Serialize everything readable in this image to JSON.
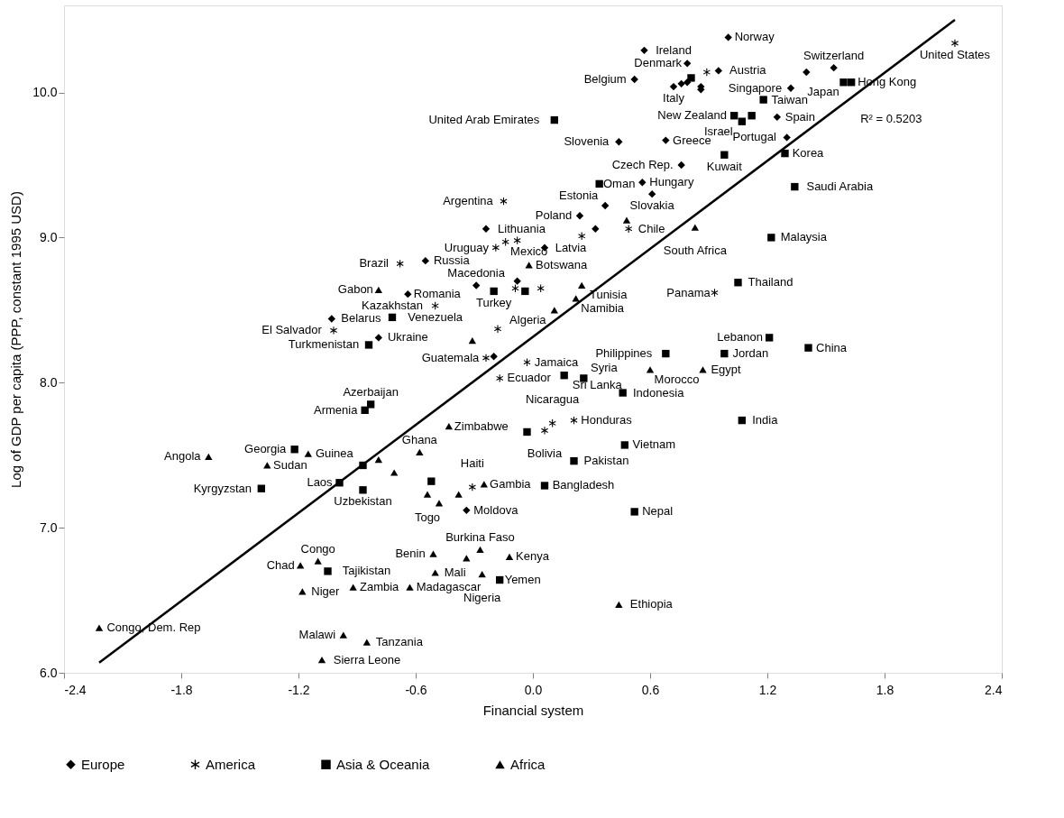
{
  "chart_data": {
    "type": "scatter",
    "xlabel": "Financial system",
    "ylabel": "Log of GDP per capita (PPP, constant 1995 USD)",
    "xlim": [
      -2.4,
      2.4
    ],
    "ylim": [
      6,
      10.6
    ],
    "xticks": [
      -2.4,
      -1.8,
      -1.2,
      -0.6,
      {
        "value": 0,
        "label": "0.0"
      },
      0.6,
      1.2,
      1.8,
      2.4
    ],
    "yticks": [
      {
        "value": 6,
        "label": "6.0"
      },
      {
        "value": 7,
        "label": "7.0"
      },
      {
        "value": 8,
        "label": "8.0"
      },
      {
        "value": 9,
        "label": "9.0"
      },
      {
        "value": 10,
        "label": "10.0"
      }
    ],
    "grid": false,
    "legend": "bottom",
    "series": [
      {
        "name": "Europe",
        "color": "#000000",
        "marker": "diamond",
        "x": [
          0.57,
          1.0,
          0.79,
          0.52,
          0.95,
          0.72,
          0.76,
          0.79,
          0.86,
          0.86,
          1.32,
          1.4,
          1.54,
          1.25,
          1.3,
          0.44,
          0.68,
          0.76,
          0.56,
          0.61,
          0.37,
          0.24,
          0.32,
          0.06,
          -0.08,
          -0.24,
          -0.55,
          -0.29,
          -0.64,
          -1.03,
          -0.79,
          -0.2,
          -0.34
        ],
        "values": [
          10.29,
          10.38,
          10.2,
          10.09,
          10.15,
          10.04,
          10.06,
          10.07,
          10.04,
          10.02,
          10.03,
          10.14,
          10.17,
          9.83,
          9.69,
          9.66,
          9.67,
          9.5,
          9.38,
          9.3,
          9.22,
          9.15,
          9.06,
          8.93,
          8.7,
          9.06,
          8.84,
          8.67,
          8.61,
          8.44,
          8.31,
          8.18,
          7.12
        ]
      },
      {
        "name": "America",
        "color": "#000000",
        "marker": "cross",
        "x": [
          0.89,
          2.16,
          -0.15,
          -0.19,
          -0.14,
          -0.08,
          0.25,
          0.49,
          0.04,
          -0.09,
          -0.18,
          -0.68,
          -0.5,
          -1.02,
          -0.24,
          -0.17,
          -0.03,
          0.1,
          0.06,
          0.21,
          -0.31,
          0.93
        ],
        "values": [
          10.14,
          10.34,
          9.25,
          8.93,
          8.97,
          8.98,
          9.01,
          9.06,
          8.65,
          8.65,
          8.37,
          8.82,
          8.53,
          8.36,
          8.17,
          8.03,
          8.14,
          7.72,
          7.67,
          7.74,
          7.28,
          8.62
        ]
      },
      {
        "name": "Asia & Oceania",
        "color": "#000000",
        "marker": "square",
        "x": [
          0.81,
          1.59,
          1.63,
          1.18,
          1.03,
          1.07,
          1.12,
          0.11,
          0.98,
          1.29,
          0.34,
          1.34,
          1.22,
          1.05,
          -0.04,
          1.21,
          -0.2,
          -0.72,
          -0.84,
          0.68,
          0.98,
          1.41,
          0.16,
          0.26,
          0.46,
          1.07,
          -0.03,
          0.47,
          0.21,
          0.06,
          0.52,
          -0.17,
          -0.83,
          -0.86,
          -1.22,
          -1.39,
          -0.99,
          -0.87,
          -0.87,
          -0.52,
          -1.05
        ],
        "values": [
          10.1,
          10.07,
          10.07,
          9.95,
          9.84,
          9.8,
          9.84,
          9.81,
          9.57,
          9.58,
          9.37,
          9.35,
          9.0,
          8.69,
          8.63,
          8.31,
          8.63,
          8.45,
          8.26,
          8.2,
          8.2,
          8.24,
          8.05,
          8.03,
          7.93,
          7.74,
          7.66,
          7.57,
          7.46,
          7.29,
          7.11,
          6.64,
          7.85,
          7.81,
          7.54,
          7.27,
          7.31,
          7.43,
          7.26,
          7.32,
          6.7
        ]
      },
      {
        "name": "Africa",
        "color": "#000000",
        "marker": "triangle",
        "x": [
          0.48,
          0.83,
          -0.02,
          0.25,
          0.22,
          0.11,
          -0.79,
          -0.31,
          0.6,
          0.87,
          -0.12,
          0.44,
          -2.22,
          -1.66,
          -1.36,
          -1.15,
          -0.79,
          -0.71,
          -0.43,
          -0.58,
          -0.54,
          -0.48,
          -0.38,
          -0.25,
          -1.19,
          -1.1,
          -1.18,
          -0.92,
          -0.63,
          -0.51,
          -0.27,
          -0.34,
          -0.5,
          -0.26,
          -0.97,
          -0.85,
          -1.08
        ],
        "values": [
          9.12,
          9.07,
          8.81,
          8.67,
          8.58,
          8.5,
          8.64,
          8.29,
          8.09,
          8.09,
          6.8,
          6.47,
          6.31,
          7.49,
          7.43,
          7.51,
          7.47,
          7.38,
          7.7,
          7.52,
          7.23,
          7.17,
          7.23,
          7.3,
          6.74,
          6.77,
          6.56,
          6.59,
          6.59,
          6.82,
          6.85,
          6.79,
          6.69,
          6.68,
          6.26,
          6.21,
          6.09
        ]
      },
      {
        "type": "line",
        "color": "#000000",
        "x": [
          -2.22,
          2.16
        ],
        "values": [
          6.07,
          10.5
        ]
      }
    ],
    "annotations": [
      "R² = 0.5203",
      {
        "text": "Ireland",
        "x": 0.57,
        "y": 10.29
      },
      {
        "text": "Norway",
        "x": 1.0,
        "y": 10.38
      },
      {
        "text": "Denmark",
        "x": 0.79,
        "y": 10.2
      },
      {
        "text": "Belgium",
        "x": 0.52,
        "y": 10.09
      },
      {
        "text": "Austria",
        "x": 0.95,
        "y": 10.15
      },
      {
        "text": "Italy",
        "x": 0.72,
        "y": 10.04
      },
      {
        "text": "Singapore",
        "x": 1.32,
        "y": 10.03
      },
      {
        "text": "Switzerland",
        "x": 1.54,
        "y": 10.17
      },
      {
        "text": "Spain",
        "x": 1.25,
        "y": 9.83
      },
      {
        "text": "Portugal",
        "x": 1.3,
        "y": 9.69
      },
      {
        "text": "Slovenia",
        "x": 0.44,
        "y": 9.66
      },
      {
        "text": "Greece",
        "x": 0.68,
        "y": 9.67
      },
      {
        "text": "Czech Rep.",
        "x": 0.76,
        "y": 9.5
      },
      {
        "text": "Hungary",
        "x": 0.56,
        "y": 9.38
      },
      {
        "text": "Slovakia",
        "x": 0.61,
        "y": 9.3
      },
      {
        "text": "Estonia",
        "x": 0.37,
        "y": 9.22
      },
      {
        "text": "Poland",
        "x": 0.24,
        "y": 9.15
      },
      {
        "text": "Latvia",
        "x": 0.06,
        "y": 8.93
      },
      {
        "text": "Lithuania",
        "x": -0.24,
        "y": 9.06
      },
      {
        "text": "Russia",
        "x": -0.55,
        "y": 8.84
      },
      {
        "text": "Macedonia",
        "x": -0.29,
        "y": 8.67
      },
      {
        "text": "Romania",
        "x": -0.64,
        "y": 8.61
      },
      {
        "text": "Belarus",
        "x": -1.03,
        "y": 8.44
      },
      {
        "text": "Ukraine",
        "x": -0.79,
        "y": 8.31
      },
      {
        "text": "Moldova",
        "x": -0.34,
        "y": 7.12
      },
      {
        "text": "United States",
        "x": 2.16,
        "y": 10.34
      },
      {
        "text": "Argentina",
        "x": -0.15,
        "y": 9.25
      },
      {
        "text": "Uruguay",
        "x": -0.19,
        "y": 8.93
      },
      {
        "text": "Mexico",
        "x": -0.14,
        "y": 8.97
      },
      {
        "text": "Chile",
        "x": 0.49,
        "y": 9.06
      },
      {
        "text": "Brazil",
        "x": -0.68,
        "y": 8.82
      },
      {
        "text": "Venezuela",
        "x": -0.5,
        "y": 8.53
      },
      {
        "text": "El Salvador",
        "x": -1.02,
        "y": 8.36
      },
      {
        "text": "Guatemala",
        "x": -0.24,
        "y": 8.17
      },
      {
        "text": "Ecuador",
        "x": -0.17,
        "y": 8.03
      },
      {
        "text": "Jamaica",
        "x": -0.03,
        "y": 8.14
      },
      {
        "text": "Nicaragua",
        "x": 0.1,
        "y": 7.72
      },
      {
        "text": "Bolivia",
        "x": 0.06,
        "y": 7.67
      },
      {
        "text": "Honduras",
        "x": 0.21,
        "y": 7.74
      },
      {
        "text": "Haiti",
        "x": -0.31,
        "y": 7.28
      },
      {
        "text": "Panama",
        "x": 0.93,
        "y": 8.62
      },
      {
        "text": "Japan",
        "x": 1.59,
        "y": 10.07
      },
      {
        "text": "Hong Kong",
        "x": 1.63,
        "y": 10.07
      },
      {
        "text": "Taiwan",
        "x": 1.18,
        "y": 9.95
      },
      {
        "text": "New Zealand",
        "x": 1.03,
        "y": 9.84
      },
      {
        "text": "Israel",
        "x": 1.07,
        "y": 9.8
      },
      {
        "text": "United Arab Emirates",
        "x": 0.11,
        "y": 9.81
      },
      {
        "text": "Kuwait",
        "x": 0.98,
        "y": 9.57
      },
      {
        "text": "Korea",
        "x": 1.29,
        "y": 9.58
      },
      {
        "text": "Oman",
        "x": 0.34,
        "y": 9.37
      },
      {
        "text": "Saudi Arabia",
        "x": 1.34,
        "y": 9.35
      },
      {
        "text": "Malaysia",
        "x": 1.22,
        "y": 9.0
      },
      {
        "text": "Thailand",
        "x": 1.05,
        "y": 8.69
      },
      {
        "text": "Lebanon",
        "x": 1.21,
        "y": 8.31
      },
      {
        "text": "Turkey",
        "x": -0.2,
        "y": 8.63
      },
      {
        "text": "Kazakhstan",
        "x": -0.72,
        "y": 8.45
      },
      {
        "text": "Turkmenistan",
        "x": -0.84,
        "y": 8.26
      },
      {
        "text": "Philippines",
        "x": 0.68,
        "y": 8.2
      },
      {
        "text": "Jordan",
        "x": 0.98,
        "y": 8.2
      },
      {
        "text": "China",
        "x": 1.41,
        "y": 8.24
      },
      {
        "text": "Sri Lanka",
        "x": 0.16,
        "y": 8.05
      },
      {
        "text": "Syria",
        "x": 0.26,
        "y": 8.03
      },
      {
        "text": "Indonesia",
        "x": 0.46,
        "y": 7.93
      },
      {
        "text": "India",
        "x": 1.07,
        "y": 7.74
      },
      {
        "text": "Vietnam",
        "x": 0.47,
        "y": 7.57
      },
      {
        "text": "Pakistan",
        "x": 0.21,
        "y": 7.46
      },
      {
        "text": "Bangladesh",
        "x": 0.06,
        "y": 7.29
      },
      {
        "text": "Nepal",
        "x": 0.52,
        "y": 7.11
      },
      {
        "text": "Yemen",
        "x": -0.17,
        "y": 6.64
      },
      {
        "text": "Azerbaijan",
        "x": -0.83,
        "y": 7.85
      },
      {
        "text": "Armenia",
        "x": -0.86,
        "y": 7.81
      },
      {
        "text": "Georgia",
        "x": -1.22,
        "y": 7.54
      },
      {
        "text": "Kyrgyzstan",
        "x": -1.39,
        "y": 7.27
      },
      {
        "text": "Laos",
        "x": -0.99,
        "y": 7.31
      },
      {
        "text": "Uzbekistan",
        "x": -0.87,
        "y": 7.26
      },
      {
        "text": "Tajikistan",
        "x": -1.05,
        "y": 6.7
      },
      {
        "text": "South Africa",
        "x": 0.83,
        "y": 9.07
      },
      {
        "text": "Botswana",
        "x": -0.02,
        "y": 8.81
      },
      {
        "text": "Tunisia",
        "x": 0.25,
        "y": 8.67
      },
      {
        "text": "Namibia",
        "x": 0.22,
        "y": 8.58
      },
      {
        "text": "Algeria",
        "x": 0.11,
        "y": 8.5
      },
      {
        "text": "Gabon",
        "x": -0.79,
        "y": 8.64
      },
      {
        "text": "Morocco",
        "x": 0.6,
        "y": 8.09
      },
      {
        "text": "Egypt",
        "x": 0.87,
        "y": 8.09
      },
      {
        "text": "Kenya",
        "x": -0.12,
        "y": 6.8
      },
      {
        "text": "Ethiopia",
        "x": 0.44,
        "y": 6.47
      },
      {
        "text": "Congo, Dem. Rep",
        "x": -2.22,
        "y": 6.31
      },
      {
        "text": "Angola",
        "x": -1.66,
        "y": 7.49
      },
      {
        "text": "Sudan",
        "x": -1.36,
        "y": 7.43
      },
      {
        "text": "Guinea",
        "x": -1.15,
        "y": 7.51
      },
      {
        "text": "Zimbabwe",
        "x": -0.43,
        "y": 7.7
      },
      {
        "text": "Ghana",
        "x": -0.58,
        "y": 7.52
      },
      {
        "text": "Togo",
        "x": -0.54,
        "y": 7.23
      },
      {
        "text": "Gambia",
        "x": -0.25,
        "y": 7.3
      },
      {
        "text": "Chad",
        "x": -1.19,
        "y": 6.74
      },
      {
        "text": "Congo",
        "x": -1.1,
        "y": 6.77
      },
      {
        "text": "Niger",
        "x": -1.18,
        "y": 6.56
      },
      {
        "text": "Zambia",
        "x": -0.92,
        "y": 6.59
      },
      {
        "text": "Madagascar",
        "x": -0.63,
        "y": 6.59
      },
      {
        "text": "Benin",
        "x": -0.51,
        "y": 6.82
      },
      {
        "text": "Burkina Faso",
        "x": -0.27,
        "y": 6.85
      },
      {
        "text": "Mali",
        "x": -0.5,
        "y": 6.69
      },
      {
        "text": "Nigeria",
        "x": -0.26,
        "y": 6.68
      },
      {
        "text": "Malawi",
        "x": -0.97,
        "y": 6.26
      },
      {
        "text": "Tanzania",
        "x": -0.85,
        "y": 6.21
      },
      {
        "text": "Sierra Leone",
        "x": -1.08,
        "y": 6.09
      }
    ]
  }
}
